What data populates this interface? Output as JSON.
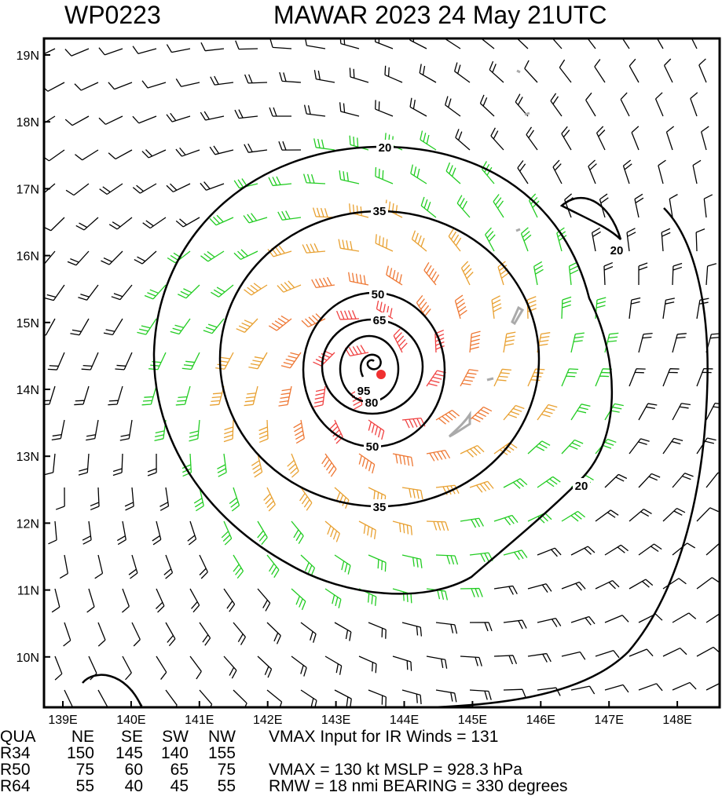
{
  "header": {
    "storm_id": "WP0223",
    "title": "MAWAR 2023 24 May 21UTC"
  },
  "map": {
    "lat_labels": [
      "19N",
      "18N",
      "17N",
      "16N",
      "15N",
      "14N",
      "13N",
      "12N",
      "11N",
      "10N"
    ],
    "lon_labels": [
      "139E",
      "140E",
      "141E",
      "142E",
      "143E",
      "144E",
      "145E",
      "146E",
      "147E",
      "148E"
    ],
    "contour_labels": [
      "20",
      "20",
      "20",
      "35",
      "35",
      "50",
      "50",
      "65",
      "80",
      "95"
    ]
  },
  "table": {
    "header": [
      "QUA",
      "NE",
      "SE",
      "SW",
      "NW"
    ],
    "rows": [
      [
        "R34",
        "150",
        "145",
        "140",
        "155"
      ],
      [
        "R50",
        "75",
        "60",
        "65",
        "75"
      ],
      [
        "R64",
        "55",
        "40",
        "45",
        "55"
      ]
    ]
  },
  "info": [
    "VMAX Input for IR Winds =  131",
    "VMAX =  130 kt MSLP =  928.3 hPa",
    "RMW  =  18 nmi BEARING =  330 degrees"
  ]
}
